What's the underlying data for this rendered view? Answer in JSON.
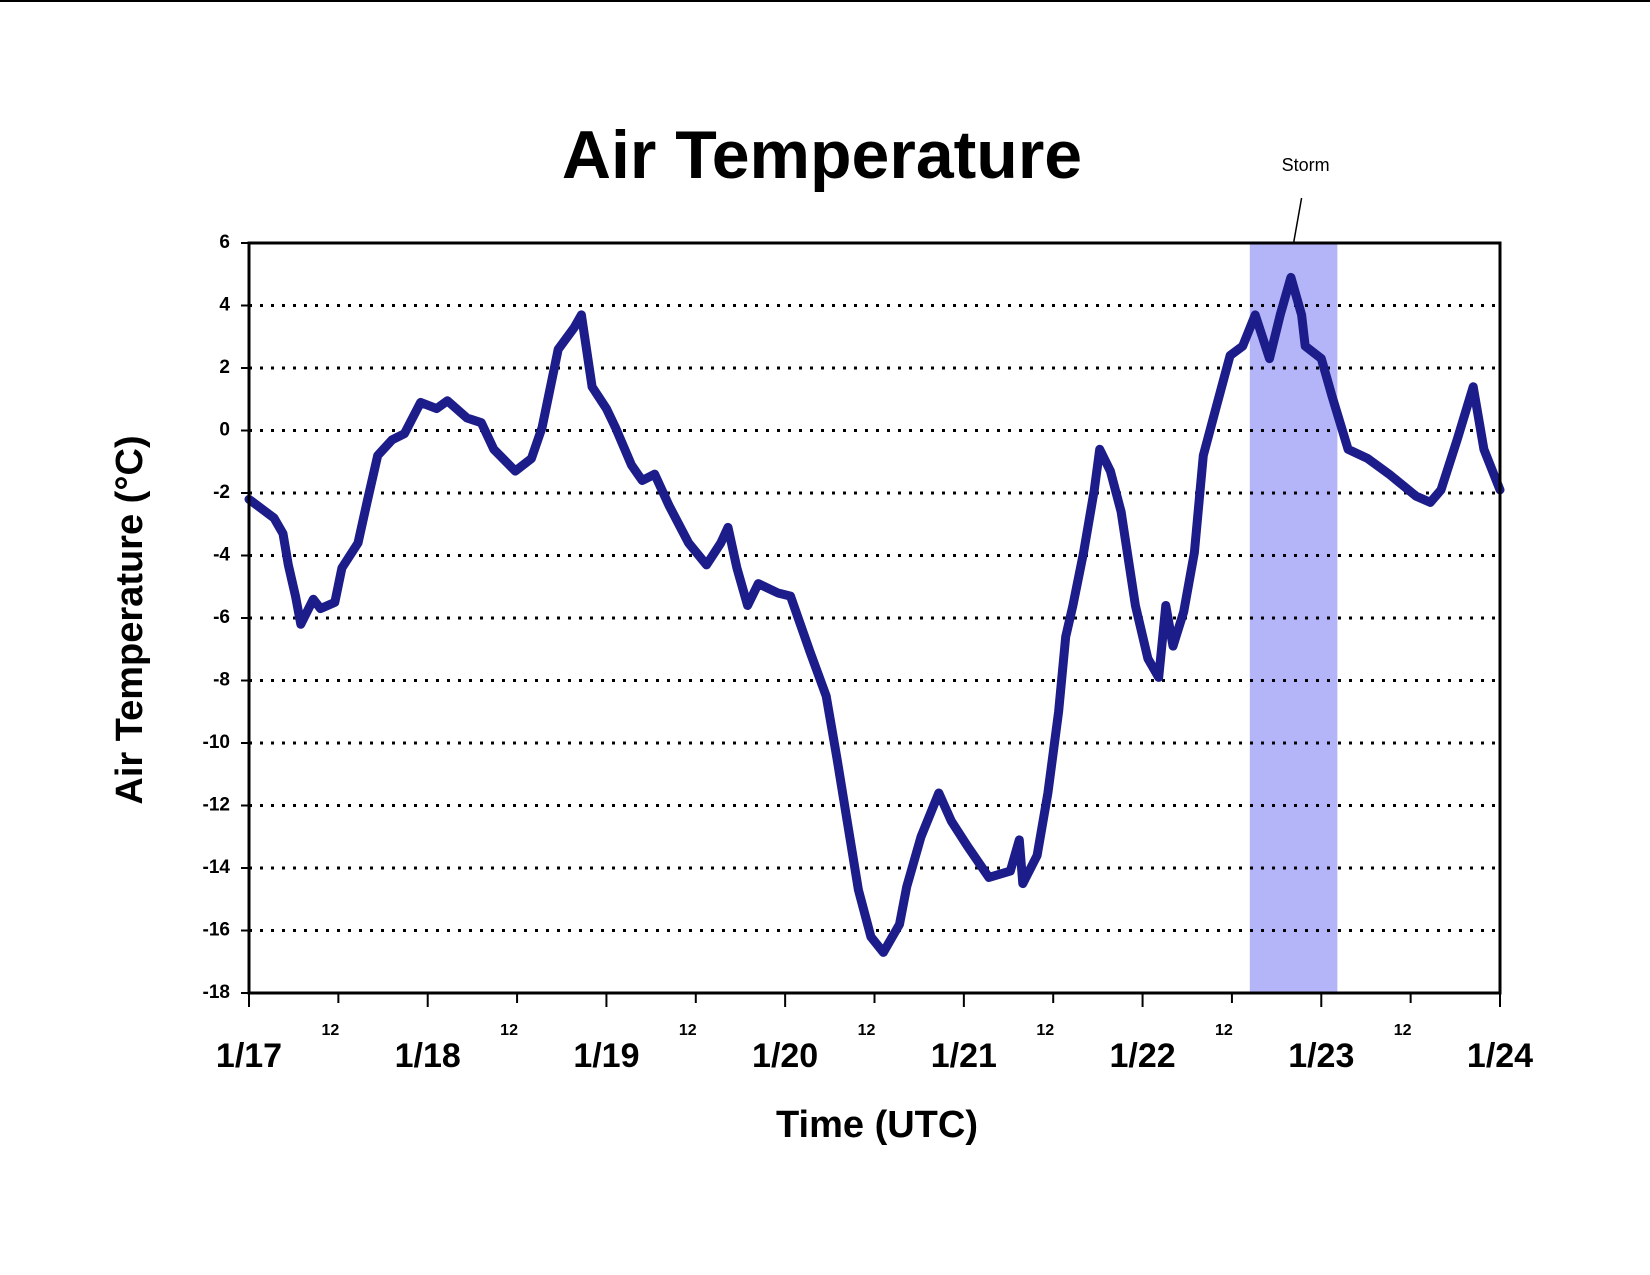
{
  "chart_data": {
    "type": "line",
    "title": "Air Temperature",
    "x_label": "Time (UTC)",
    "y_label": "Air Temperature (°C)",
    "xlim": [
      0,
      7
    ],
    "ylim": [
      -18,
      6
    ],
    "xticks": [
      {
        "value": 0,
        "label": "1/17"
      },
      {
        "value": 0.5,
        "label": "12"
      },
      {
        "value": 1,
        "label": "1/18"
      },
      {
        "value": 1.5,
        "label": "12"
      },
      {
        "value": 2,
        "label": "1/19"
      },
      {
        "value": 2.5,
        "label": "12"
      },
      {
        "value": 3,
        "label": "1/20"
      },
      {
        "value": 3.5,
        "label": "12"
      },
      {
        "value": 4,
        "label": "1/21"
      },
      {
        "value": 4.5,
        "label": "12"
      },
      {
        "value": 5,
        "label": "1/22"
      },
      {
        "value": 5.5,
        "label": "12"
      },
      {
        "value": 6,
        "label": "1/23"
      },
      {
        "value": 6.5,
        "label": "12"
      },
      {
        "value": 7,
        "label": "1/24"
      }
    ],
    "yticks": [
      -18,
      -16,
      -14,
      -12,
      -10,
      -8,
      -6,
      -4,
      -2,
      0,
      2,
      4,
      6
    ],
    "grid": true,
    "shade": {
      "label": "Storm",
      "x": [
        5.6,
        6.09
      ],
      "color": "#b4b4f8"
    },
    "series": [
      {
        "color": "#1c1c8a",
        "x": [
          0,
          0.14,
          0.19,
          0.22,
          0.26,
          0.29,
          0.36,
          0.4,
          0.48,
          0.52,
          0.61,
          0.66,
          0.72,
          0.8,
          0.87,
          0.96,
          1.05,
          1.11,
          1.22,
          1.3,
          1.37,
          1.49,
          1.58,
          1.64,
          1.73,
          1.82,
          1.86,
          1.92,
          2.0,
          2.05,
          2.14,
          2.2,
          2.27,
          2.35,
          2.46,
          2.56,
          2.64,
          2.68,
          2.73,
          2.79,
          2.85,
          2.96,
          3.03,
          3.14,
          3.23,
          3.29,
          3.35,
          3.41,
          3.48,
          3.55,
          3.64,
          3.68,
          3.76,
          3.86,
          3.93,
          4.02,
          4.14,
          4.26,
          4.31,
          4.33,
          4.41,
          4.47,
          4.53,
          4.57,
          4.61,
          4.67,
          4.73,
          4.76,
          4.82,
          4.88,
          4.96,
          5.03,
          5.09,
          5.13,
          5.17,
          5.23,
          5.29,
          5.34,
          5.41,
          5.49,
          5.56,
          5.63,
          5.71,
          5.77,
          5.83,
          5.89,
          5.91,
          6.0,
          6.06,
          6.15,
          6.26,
          6.38,
          6.53,
          6.61,
          6.67,
          6.76,
          6.85,
          6.91,
          7.0
        ],
        "values": [
          -2.2,
          -2.8,
          -3.3,
          -4.3,
          -5.3,
          -6.2,
          -5.4,
          -5.7,
          -5.5,
          -4.4,
          -3.6,
          -2.3,
          -0.8,
          -0.3,
          -0.1,
          0.9,
          0.7,
          0.95,
          0.4,
          0.25,
          -0.6,
          -1.3,
          -0.9,
          0.1,
          2.6,
          3.3,
          3.7,
          1.4,
          0.7,
          0.1,
          -1.1,
          -1.6,
          -1.4,
          -2.4,
          -3.6,
          -4.3,
          -3.6,
          -3.1,
          -4.4,
          -5.6,
          -4.9,
          -5.2,
          -5.3,
          -7.1,
          -8.5,
          -10.5,
          -12.6,
          -14.7,
          -16.2,
          -16.7,
          -15.8,
          -14.6,
          -13.0,
          -11.6,
          -12.5,
          -13.3,
          -14.3,
          -14.1,
          -13.1,
          -14.5,
          -13.6,
          -11.6,
          -9.0,
          -6.6,
          -5.6,
          -3.9,
          -1.9,
          -0.6,
          -1.3,
          -2.6,
          -5.6,
          -7.3,
          -7.9,
          -5.6,
          -6.9,
          -5.8,
          -3.9,
          -0.8,
          0.7,
          2.4,
          2.7,
          3.7,
          2.3,
          3.7,
          4.9,
          3.7,
          2.7,
          2.3,
          1.1,
          -0.6,
          -0.9,
          -1.4,
          -2.1,
          -2.3,
          -1.9,
          -0.3,
          1.4,
          -0.6,
          -1.9
        ]
      }
    ]
  }
}
